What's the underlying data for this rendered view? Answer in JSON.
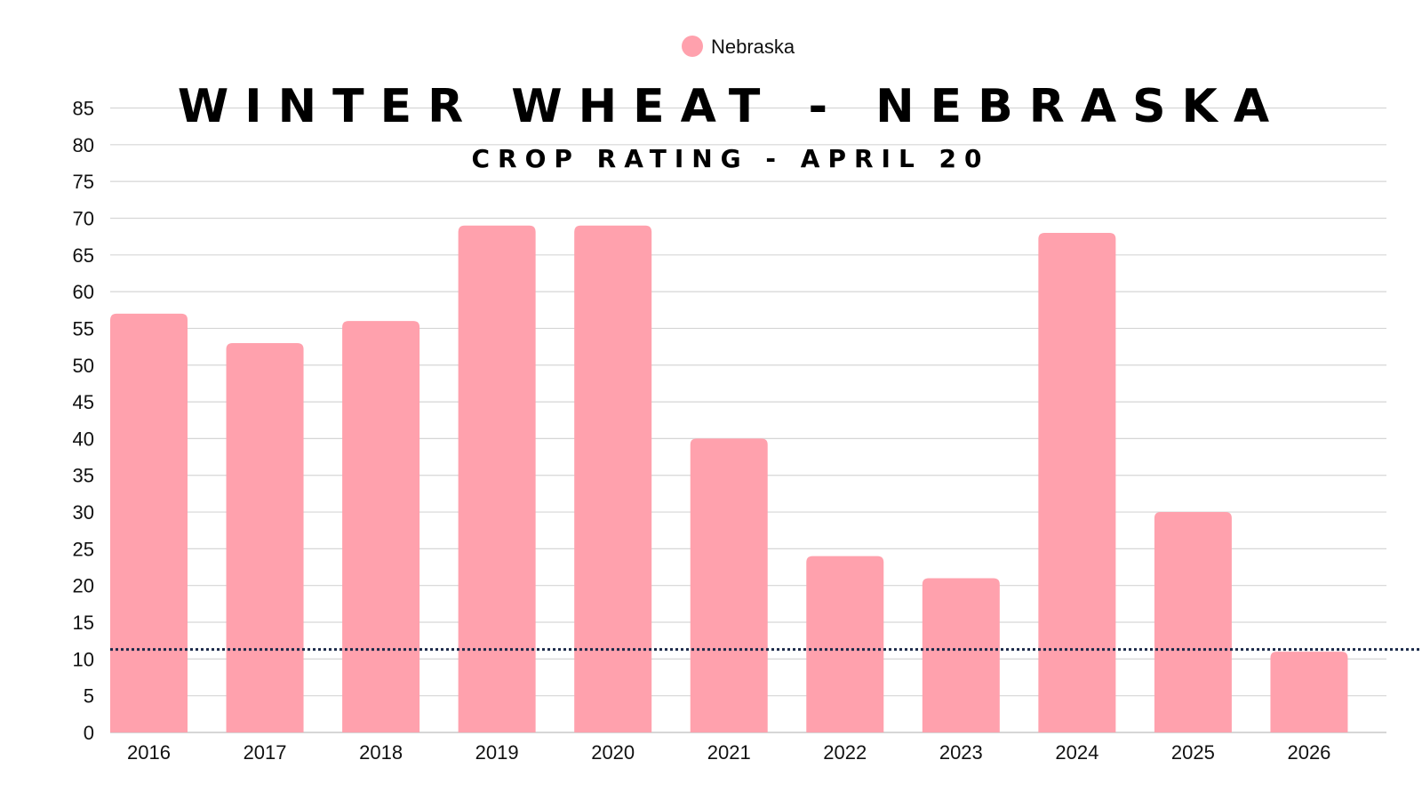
{
  "chart_data": {
    "type": "bar",
    "title": "WINTER WHEAT - NEBRASKA",
    "subtitle": "CROP RATING - APRIL 20",
    "categories": [
      "2016",
      "2017",
      "2018",
      "2019",
      "2020",
      "2021",
      "2022",
      "2023",
      "2024",
      "2025",
      "2026"
    ],
    "series": [
      {
        "name": "Nebraska",
        "color": "#ffa1ad",
        "values": [
          57,
          53,
          56,
          69,
          69,
          40,
          24,
          21,
          68,
          30,
          11
        ]
      }
    ],
    "yticks": [
      0,
      5,
      10,
      15,
      20,
      25,
      30,
      35,
      40,
      45,
      50,
      55,
      60,
      65,
      70,
      75,
      80,
      85
    ],
    "ylim": [
      0,
      85
    ],
    "xlabel": "",
    "ylabel": "",
    "grid": true,
    "legend_position": "top-center",
    "reference_line": {
      "value": 11.3,
      "color": "#1b2a4a",
      "style": "dotted"
    }
  }
}
